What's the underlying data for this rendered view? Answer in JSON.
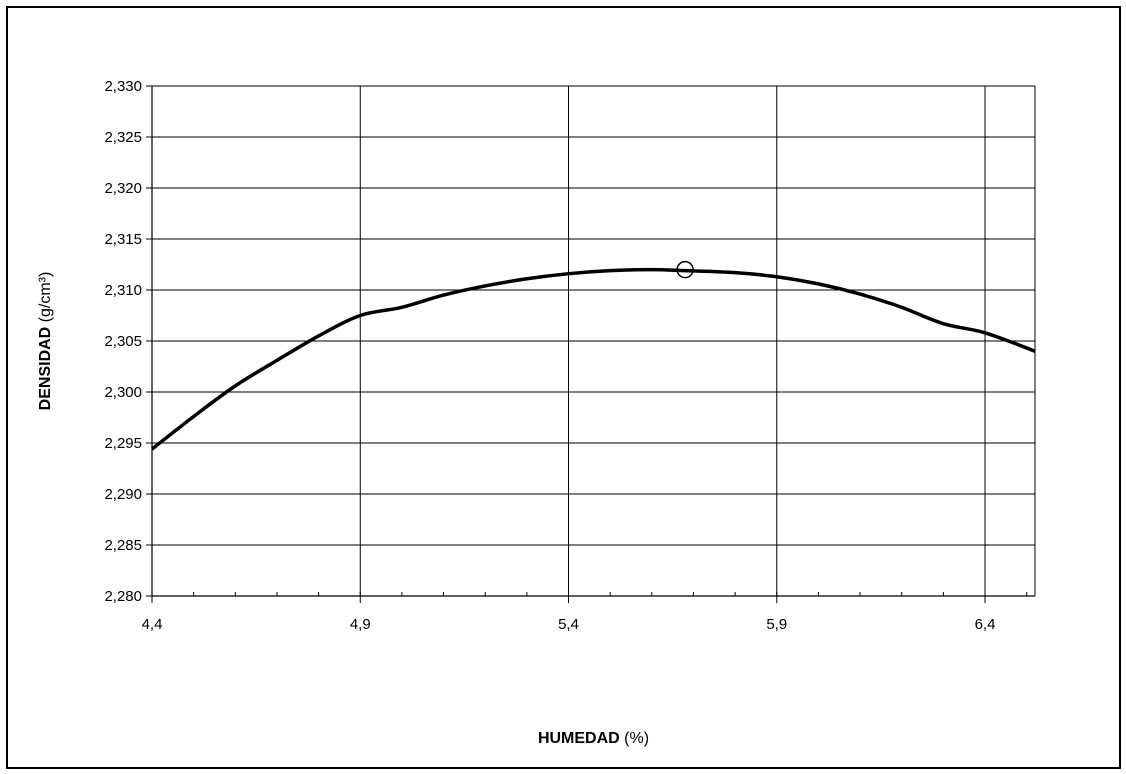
{
  "chart_data": {
    "type": "line",
    "xlabel_bold": "HUMEDAD",
    "xlabel_rest": " (%)",
    "ylabel_bold": "DENSIDAD",
    "ylabel_rest": " (g/cm³)",
    "xlim": [
      4.4,
      6.52
    ],
    "ylim": [
      2.28,
      2.33
    ],
    "x_ticks": [
      4.4,
      4.9,
      5.4,
      5.9,
      6.4
    ],
    "x_tick_labels": [
      "4,4",
      "4,9",
      "5,4",
      "5,9",
      "6,4"
    ],
    "x_minor_step": 0.1,
    "y_ticks": [
      2.28,
      2.285,
      2.29,
      2.295,
      2.3,
      2.305,
      2.31,
      2.315,
      2.32,
      2.325,
      2.33
    ],
    "y_tick_labels": [
      "2,280",
      "2,285",
      "2,290",
      "2,295",
      "2,300",
      "2,305",
      "2,310",
      "2,315",
      "2,320",
      "2,325",
      "2,330"
    ],
    "grid": true,
    "series": [
      {
        "x": [
          4.4,
          4.5,
          4.6,
          4.7,
          4.8,
          4.9,
          5.0,
          5.1,
          5.2,
          5.3,
          5.4,
          5.5,
          5.6,
          5.68,
          5.8,
          5.9,
          6.0,
          6.1,
          6.2,
          6.3,
          6.4,
          6.52
        ],
        "y": [
          2.2944,
          2.2976,
          2.3006,
          2.3031,
          2.3055,
          2.3075,
          2.3083,
          2.3095,
          2.3104,
          2.3111,
          2.3116,
          2.3119,
          2.312,
          2.3119,
          2.3117,
          2.3113,
          2.3106,
          2.3096,
          2.3083,
          2.3067,
          2.3058,
          2.304
        ]
      }
    ],
    "optimum_point": {
      "x": 5.68,
      "y": 2.312
    }
  }
}
